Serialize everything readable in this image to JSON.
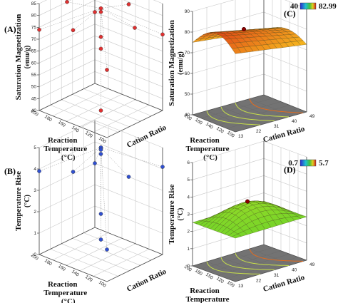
{
  "chart_data": [
    {
      "panel": "(A)",
      "type": "scatter",
      "zlabel": "Saturation Magnetization (emu/g)",
      "xlabel": "Reaction Temperature (°C)",
      "ylabel": "Cation Ratio",
      "zticks": [
        "40",
        "45",
        "50",
        "55",
        "60",
        "65",
        "70",
        "75",
        "80",
        "85"
      ],
      "xticks": [
        "200",
        "180",
        "160",
        "140",
        "120",
        "100"
      ],
      "points": [
        {
          "T": 150,
          "R": 31,
          "M": 82.99
        },
        {
          "T": 150,
          "R": 31,
          "M": 81.5
        },
        {
          "T": 200,
          "R": 31,
          "M": 80.0
        },
        {
          "T": 100,
          "R": 31,
          "M": 80.5
        },
        {
          "T": 150,
          "R": 13,
          "M": 79.5
        },
        {
          "T": 150,
          "R": 49,
          "M": 79.0
        },
        {
          "T": 200,
          "R": 13,
          "M": 74.0
        },
        {
          "T": 100,
          "R": 49,
          "M": 72.0
        },
        {
          "T": 150,
          "R": 31,
          "M": 71.0
        },
        {
          "T": 200,
          "R": 49,
          "M": 70.0
        },
        {
          "T": 100,
          "R": 13,
          "M": 68.5
        },
        {
          "T": 150,
          "R": 31,
          "M": 66.0
        },
        {
          "T": 150,
          "R": 31,
          "M": 40.0
        }
      ]
    },
    {
      "panel": "(C)",
      "type": "surface",
      "zlabel": "Saturation Magnetization (emu/g)",
      "xlabel": "Reaction Temperature (°C)",
      "ylabel": "Cation Ratio",
      "zticks": [
        "40",
        "50",
        "60",
        "70",
        "80",
        "90"
      ],
      "xticks": [
        "200",
        "160",
        "140",
        "120",
        "100"
      ],
      "yticks": [
        "13",
        "22",
        "31",
        "40",
        "49"
      ],
      "colorbar": {
        "min": "40",
        "max": "82.99"
      }
    },
    {
      "panel": "(B)",
      "type": "scatter",
      "zlabel": "Temperature Rise (°C)",
      "xlabel": "Reaction Temperature (°C)",
      "ylabel": "Cation Ratio",
      "zticks": [
        "0",
        "1",
        "2",
        "3",
        "4",
        "5"
      ],
      "xticks": [
        "200",
        "180",
        "160",
        "140",
        "120",
        "100"
      ],
      "points": [
        {
          "T": 150,
          "R": 31,
          "dT": 5.7
        },
        {
          "T": 150,
          "R": 31,
          "dT": 5.3
        },
        {
          "T": 150,
          "R": 31,
          "dT": 5.1
        },
        {
          "T": 150,
          "R": 31,
          "dT": 4.9
        },
        {
          "T": 150,
          "R": 31,
          "dT": 4.7
        },
        {
          "T": 150,
          "R": 13,
          "dT": 4.5
        },
        {
          "T": 100,
          "R": 49,
          "dT": 4.1
        },
        {
          "T": 200,
          "R": 13,
          "dT": 3.9
        },
        {
          "T": 150,
          "R": 49,
          "dT": 3.0
        },
        {
          "T": 200,
          "R": 49,
          "dT": 3.0
        },
        {
          "T": 150,
          "R": 31,
          "dT": 1.9
        },
        {
          "T": 100,
          "R": 13,
          "dT": 1.5
        },
        {
          "T": 150,
          "R": 31,
          "dT": 0.7
        }
      ]
    },
    {
      "panel": "(D)",
      "type": "surface",
      "zlabel": "Temperature Rise (°C)",
      "xlabel": "Reaction Temperature (°C)",
      "ylabel": "Cation Ratio",
      "zticks": [
        "0",
        "1",
        "2",
        "3",
        "4",
        "5",
        "6"
      ],
      "xticks": [
        "200",
        "180",
        "150",
        "120",
        "100"
      ],
      "yticks": [
        "13",
        "22",
        "31",
        "40",
        "49"
      ],
      "colorbar": {
        "min": "0.7",
        "max": "5.7"
      }
    }
  ]
}
